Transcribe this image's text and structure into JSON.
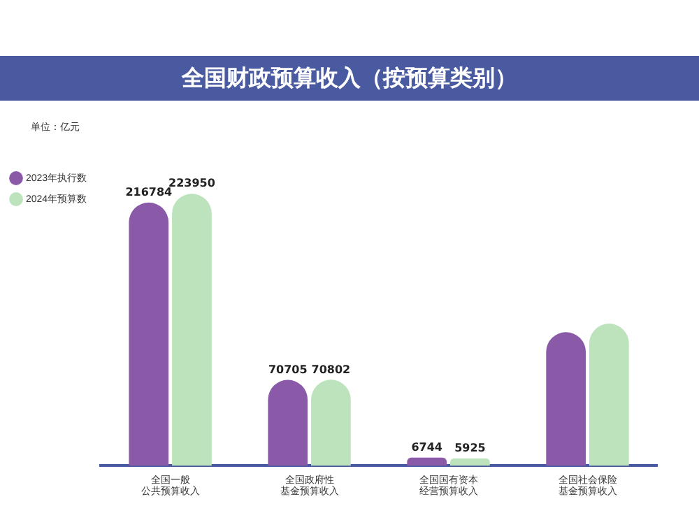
{
  "chart_data": {
    "type": "bar",
    "title": "全国财政预算收入（按预算类别）",
    "subtitle": "单位：亿元",
    "categories": [
      "全国一般公共预算收入",
      "全国政府性基金预算收入",
      "全国国有资本经营预算收入",
      "全国社会保险基金预算收入"
    ],
    "series": [
      {
        "name": "2023年执行数",
        "color": "#8a5aa8",
        "values": [
          216784,
          70705,
          6744,
          110000
        ],
        "value_labels": [
          "216784",
          "70705",
          "6744",
          null
        ]
      },
      {
        "name": "2024年预算数",
        "color": "#bde3bd",
        "values": [
          223950,
          70802,
          5925,
          117000
        ],
        "value_labels": [
          "223950",
          "70802",
          "5925",
          null
        ]
      }
    ],
    "legend": "top left",
    "grid": false,
    "tick_labels": "x"
  }
}
